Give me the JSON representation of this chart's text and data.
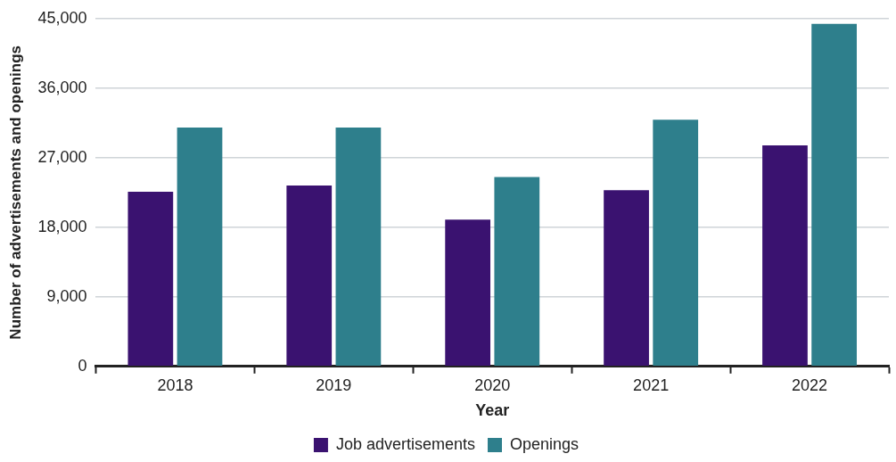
{
  "chart_data": {
    "type": "bar",
    "xlabel": "Year",
    "ylabel": "Number of advertisements and openings",
    "categories": [
      "2018",
      "2019",
      "2020",
      "2021",
      "2022"
    ],
    "series": [
      {
        "name": "Job advertisements",
        "color": "#3a1270",
        "values": [
          22600,
          23400,
          19000,
          22800,
          28600
        ]
      },
      {
        "name": "Openings",
        "color": "#2e7f8c",
        "values": [
          30900,
          30900,
          24500,
          31900,
          44300
        ]
      }
    ],
    "ylim": [
      0,
      45000
    ],
    "yticks": [
      {
        "value": 0,
        "label": "0"
      },
      {
        "value": 9000,
        "label": "9,000"
      },
      {
        "value": 18000,
        "label": "18,000"
      },
      {
        "value": 27000,
        "label": "27,000"
      },
      {
        "value": 36000,
        "label": "36,000"
      },
      {
        "value": 45000,
        "label": "45,000"
      }
    ],
    "grid": "y",
    "legend": "bottom"
  }
}
